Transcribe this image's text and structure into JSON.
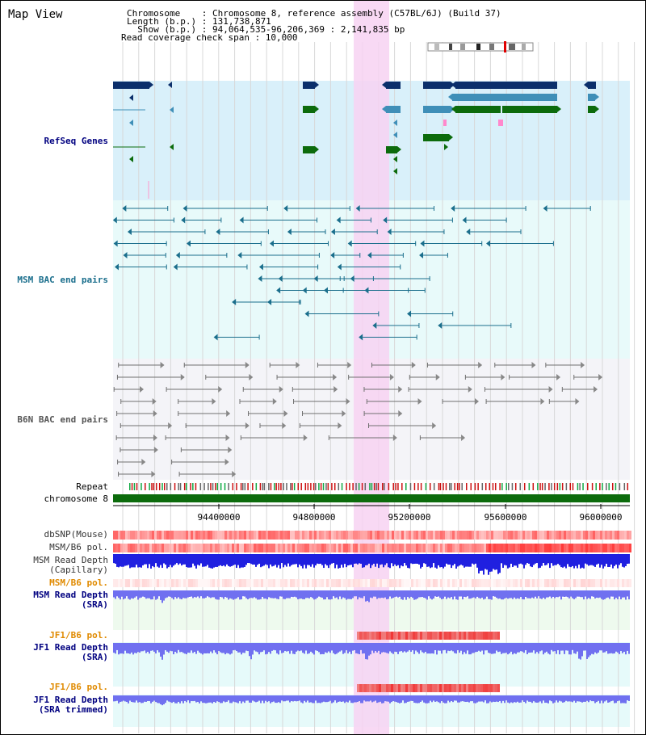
{
  "map_title": "Map View",
  "header": {
    "line1": "Chromosome    : Chromosome 8, reference assembly (C57BL/6J) (Build 37)",
    "line2": "Length (b.p.) : 131,738,871",
    "line3": "  Show (b.p.) : 94,064,535-96,206,369 : 2,141,835 bp",
    "line4": "Read coverage check span : 10,000"
  },
  "tracks": {
    "refseq": "RefSeq Genes",
    "msm_bac": "MSM BAC end pairs",
    "b6n_bac": "B6N BAC end pairs",
    "repeat": "Repeat",
    "chromosome": "chromosome 8",
    "dbsnp": "dbSNP(Mouse)",
    "msm_b6_pol": "MSM/B6 pol.",
    "msm_depth_cap_1": "MSM Read Depth",
    "msm_depth_cap_2": "(Capillary)",
    "msm_b6_pol_2": "MSM/B6 pol.",
    "msm_depth_sra_1": "MSM Read Depth",
    "msm_depth_sra_2": "(SRA)",
    "jf1_b6_pol": "JF1/B6 pol.",
    "jf1_depth_sra_1": "JF1 Read Depth",
    "jf1_depth_sra_2": "(SRA)",
    "jf1_b6_pol_2": "JF1/B6 pol.",
    "jf1_depth_trim_1": "JF1 Read Depth",
    "jf1_depth_trim_2": "(SRA trimmed)"
  },
  "axis": {
    "ticks": [
      "94400000",
      "94800000",
      "95200000",
      "95600000",
      "96000000"
    ]
  },
  "colors": {
    "refseq_bg": "#d9f0fa",
    "bac_bg": "#e8fafa",
    "b6n_bg": "#f4f4f8",
    "highlight": "#f7d2f2",
    "dark_navy": "#0b2f6b",
    "steel_blue": "#3f8fb8",
    "green": "#0c6b0c",
    "msm_line": "#1a6e8c",
    "b6n_line": "#707070",
    "read_depth_blue": "#2020e0",
    "sra_blue": "#7070f0",
    "chromosome_green": "#0c6b0c",
    "orange_label": "#e08a00",
    "navy_label": "#000080"
  }
}
